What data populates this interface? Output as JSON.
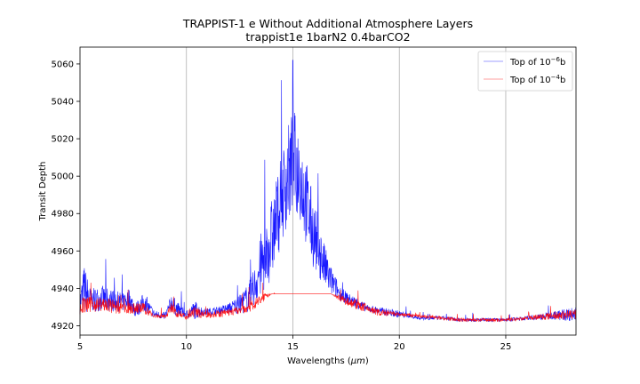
{
  "chart_data": {
    "type": "line",
    "title": "TRAPPIST-1 e Without Additional Atmosphere Layers",
    "subtitle": "trappist1e 1barN2 0.4barCO2",
    "xlabel_prefix": "Wavelengths (",
    "xlabel_unit": "μm",
    "xlabel_suffix": ")",
    "ylabel": "Transit Depth",
    "xlim": [
      5,
      28.3
    ],
    "ylim": [
      4915,
      5069
    ],
    "xticks": [
      5,
      10,
      15,
      20,
      25
    ],
    "yticks": [
      4920,
      4940,
      4960,
      4980,
      5000,
      5020,
      5040,
      5060
    ],
    "grid": "vertical",
    "legend_placement": "top-right",
    "series": [
      {
        "name_base": "Top of 10",
        "name_exp": "−6",
        "name_unit": "b",
        "color": "#0000ff",
        "x": [
          5.0,
          5.2,
          5.5,
          6.0,
          6.5,
          7.0,
          7.3,
          7.6,
          8.0,
          8.5,
          9.0,
          9.3,
          9.6,
          10.0,
          10.4,
          10.8,
          11.5,
          12.0,
          12.5,
          12.9,
          13.2,
          13.5,
          13.8,
          14.1,
          14.4,
          14.7,
          15.0,
          15.3,
          15.6,
          15.9,
          16.2,
          16.5,
          16.8,
          17.2,
          17.6,
          18.0,
          18.5,
          19.0,
          19.5,
          20.0,
          20.5,
          21.0,
          22.0,
          23.0,
          24.0,
          25.0,
          26.0,
          27.0,
          28.3
        ],
        "y": [
          4932,
          4938,
          4933,
          4934,
          4933,
          4932,
          4934,
          4928,
          4932,
          4926,
          4925,
          4932,
          4928,
          4926,
          4928,
          4927,
          4928,
          4929,
          4931,
          4934,
          4940,
          4950,
          4958,
          4968,
          4983,
          4995,
          5005,
          5000,
          4985,
          4970,
          4960,
          4950,
          4943,
          4937,
          4934,
          4932,
          4929,
          4928,
          4927,
          4926,
          4925,
          4924,
          4924,
          4923,
          4923,
          4923,
          4924,
          4925,
          4926
        ],
        "spread": [
          6,
          14,
          6,
          7,
          6,
          5,
          6,
          4,
          5,
          2,
          2,
          5,
          4,
          2,
          5,
          2,
          2,
          3,
          5,
          8,
          10,
          18,
          20,
          22,
          24,
          26,
          30,
          25,
          24,
          20,
          16,
          12,
          8,
          4,
          3,
          3,
          2,
          2,
          2,
          2,
          1,
          1,
          1,
          1,
          1,
          1,
          1,
          2,
          4
        ],
        "peak": [
          15.0,
          5062
        ]
      },
      {
        "name_base": "Top of 10",
        "name_exp": "−4",
        "name_unit": "b",
        "color": "#ff0000",
        "x": [
          5.0,
          5.5,
          6.0,
          6.5,
          7.0,
          7.5,
          8.0,
          8.5,
          9.0,
          9.3,
          9.6,
          10.0,
          10.4,
          10.8,
          11.5,
          12.0,
          12.5,
          13.0,
          13.5,
          14.0,
          15.0,
          16.0,
          16.8,
          17.3,
          18.0,
          18.5,
          19.0,
          20.0,
          21.0,
          22.0,
          23.0,
          24.0,
          25.0,
          26.0,
          27.0,
          28.3
        ],
        "y": [
          4930,
          4931,
          4931,
          4930,
          4929,
          4929,
          4929,
          4925,
          4925,
          4929,
          4927,
          4924,
          4927,
          4926,
          4926,
          4927,
          4928,
          4930,
          4934,
          4937,
          4937,
          4937,
          4937,
          4934,
          4931,
          4929,
          4927,
          4926,
          4925,
          4924,
          4923,
          4923,
          4923,
          4924,
          4925,
          4926
        ],
        "spread": [
          5,
          4,
          4,
          4,
          3,
          3,
          3,
          1,
          1,
          3,
          3,
          1,
          3,
          2,
          2,
          2,
          2,
          3,
          3,
          0,
          0,
          0,
          0,
          2,
          3,
          2,
          2,
          1,
          1,
          1,
          1,
          1,
          1,
          1,
          2,
          3
        ]
      }
    ]
  }
}
